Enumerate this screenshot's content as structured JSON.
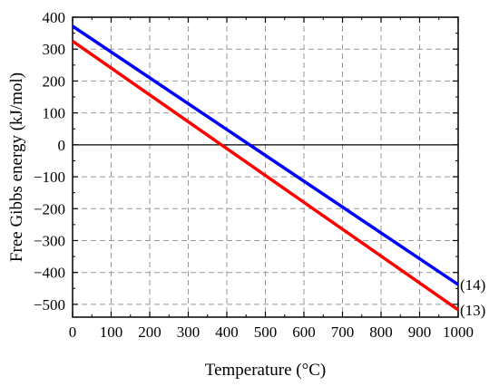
{
  "chart_data": {
    "type": "line",
    "title": "",
    "xlabel": "Temperature (°C)",
    "ylabel": "Free Gibbs energy (kJ/mol)",
    "xlim": [
      0,
      1000
    ],
    "ylim": [
      -540,
      400
    ],
    "xticks": [
      0,
      100,
      200,
      300,
      400,
      500,
      600,
      700,
      800,
      900,
      1000
    ],
    "yticks": [
      -500,
      -400,
      -300,
      -200,
      -100,
      0,
      100,
      200,
      300,
      400
    ],
    "grid": true,
    "zero_line": true,
    "series": [
      {
        "name": "(14)",
        "color": "#0000ff",
        "x": [
          0,
          1000
        ],
        "y": [
          372,
          -438
        ]
      },
      {
        "name": "(13)",
        "color": "#ff0000",
        "x": [
          0,
          1000
        ],
        "y": [
          325,
          -517
        ]
      }
    ]
  }
}
